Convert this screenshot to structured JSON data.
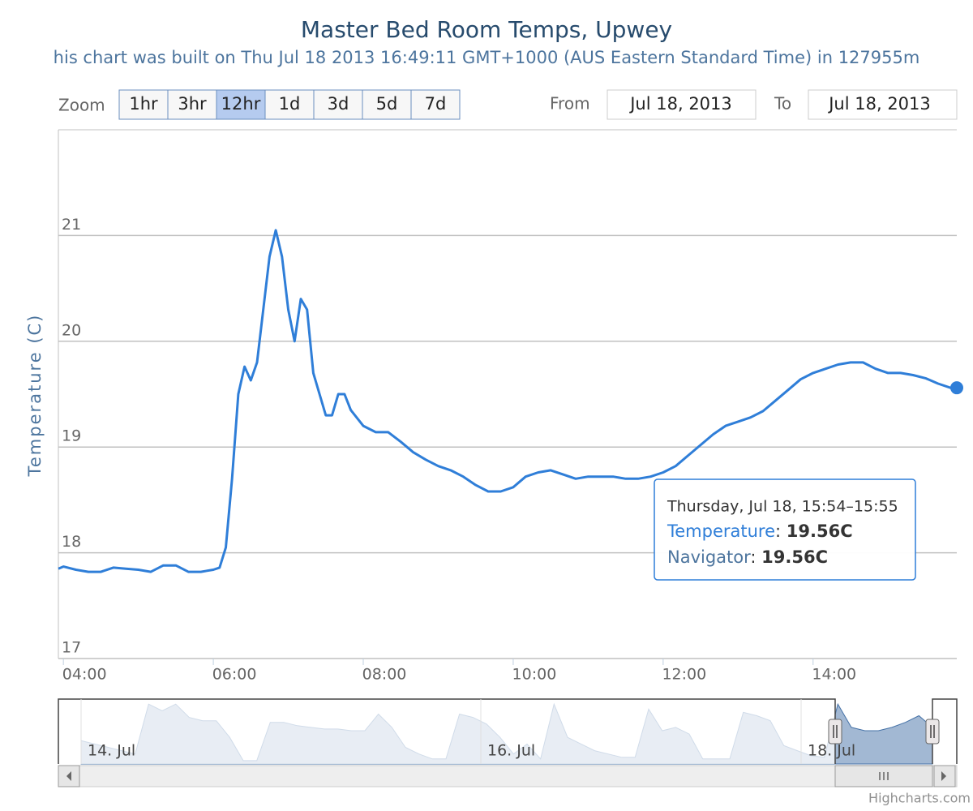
{
  "chart_data": {
    "type": "line",
    "title": "Master Bed Room Temps, Upwey",
    "subtitle": "his chart was built on Thu Jul 18 2013 16:49:11 GMT+1000 (AUS Eastern Standard Time) in 127955m",
    "zoom_label": "Zoom",
    "zoom_buttons": [
      "1hr",
      "3hr",
      "12hr",
      "1d",
      "3d",
      "5d",
      "7d"
    ],
    "zoom_selected": "12hr",
    "from_label": "From",
    "from_value": "Jul 18, 2013",
    "to_label": "To",
    "to_value": "Jul 18, 2013",
    "y_label": "Temperature (C)",
    "xlim": [
      "03:56",
      "15:55"
    ],
    "xticks": [
      "04:00",
      "06:00",
      "08:00",
      "10:00",
      "12:00",
      "14:00"
    ],
    "ylim": [
      17,
      22
    ],
    "yticks": [
      17,
      18,
      19,
      20,
      21
    ],
    "grid": true,
    "x": [
      "03:56",
      "04:00",
      "04:10",
      "04:20",
      "04:30",
      "04:40",
      "04:50",
      "05:00",
      "05:10",
      "05:20",
      "05:30",
      "05:40",
      "05:50",
      "06:00",
      "06:05",
      "06:10",
      "06:15",
      "06:20",
      "06:25",
      "06:30",
      "06:35",
      "06:40",
      "06:45",
      "06:50",
      "06:55",
      "07:00",
      "07:05",
      "07:10",
      "07:15",
      "07:20",
      "07:25",
      "07:30",
      "07:35",
      "07:40",
      "07:45",
      "07:50",
      "08:00",
      "08:10",
      "08:20",
      "08:30",
      "08:40",
      "08:50",
      "09:00",
      "09:10",
      "09:20",
      "09:30",
      "09:40",
      "09:50",
      "10:00",
      "10:10",
      "10:20",
      "10:30",
      "10:40",
      "10:50",
      "11:00",
      "11:10",
      "11:20",
      "11:30",
      "11:40",
      "11:50",
      "12:00",
      "12:10",
      "12:20",
      "12:30",
      "12:40",
      "12:50",
      "13:00",
      "13:10",
      "13:20",
      "13:30",
      "13:40",
      "13:50",
      "14:00",
      "14:10",
      "14:20",
      "14:30",
      "14:40",
      "14:50",
      "15:00",
      "15:10",
      "15:20",
      "15:30",
      "15:40",
      "15:50",
      "15:55"
    ],
    "series": [
      {
        "name": "Temperature",
        "color": "#2f7ed8",
        "values": [
          17.85,
          17.87,
          17.84,
          17.82,
          17.82,
          17.86,
          17.85,
          17.84,
          17.82,
          17.88,
          17.88,
          17.82,
          17.82,
          17.84,
          17.86,
          18.05,
          18.7,
          19.5,
          19.76,
          19.63,
          19.8,
          20.3,
          20.8,
          21.05,
          20.8,
          20.3,
          20.0,
          20.4,
          20.3,
          19.7,
          19.5,
          19.3,
          19.3,
          19.5,
          19.5,
          19.35,
          19.2,
          19.14,
          19.14,
          19.05,
          18.95,
          18.88,
          18.82,
          18.78,
          18.72,
          18.64,
          18.58,
          18.58,
          18.62,
          18.72,
          18.76,
          18.78,
          18.74,
          18.7,
          18.72,
          18.72,
          18.72,
          18.7,
          18.7,
          18.72,
          18.76,
          18.82,
          18.92,
          19.02,
          19.12,
          19.2,
          19.24,
          19.28,
          19.34,
          19.44,
          19.54,
          19.64,
          19.7,
          19.74,
          19.78,
          19.8,
          19.8,
          19.74,
          19.7,
          19.7,
          19.68,
          19.65,
          19.6,
          19.56,
          19.56
        ]
      }
    ],
    "tooltip": {
      "header": "Thursday, Jul 18, 15:54–15:55",
      "rows": [
        {
          "name": "Temperature",
          "value": "19.56C"
        },
        {
          "name": "Navigator",
          "value": "19.56C"
        }
      ]
    },
    "navigator": {
      "labels": [
        "14. Jul",
        "16. Jul",
        "18. Jul"
      ],
      "values": [
        18.8,
        18.6,
        18.4,
        18.2,
        18.0,
        21.0,
        20.6,
        21.0,
        20.2,
        20.0,
        20.0,
        19.0,
        17.6,
        17.6,
        19.9,
        19.9,
        19.7,
        19.6,
        19.5,
        19.5,
        19.4,
        19.4,
        20.4,
        19.6,
        18.4,
        18.0,
        17.7,
        17.7,
        20.4,
        20.2,
        19.8,
        19.0,
        18.0,
        18.6,
        17.7,
        21.0,
        19.0,
        18.6,
        18.2,
        18.0,
        17.8,
        17.8,
        20.7,
        19.4,
        19.6,
        19.2,
        17.7,
        17.7,
        17.7,
        20.5,
        20.3,
        20.0,
        18.5,
        18.2,
        17.9,
        17.8,
        21.0,
        19.6,
        19.4,
        19.4,
        19.6,
        19.9,
        20.3,
        19.6
      ]
    },
    "credits": "Highcharts.com"
  }
}
